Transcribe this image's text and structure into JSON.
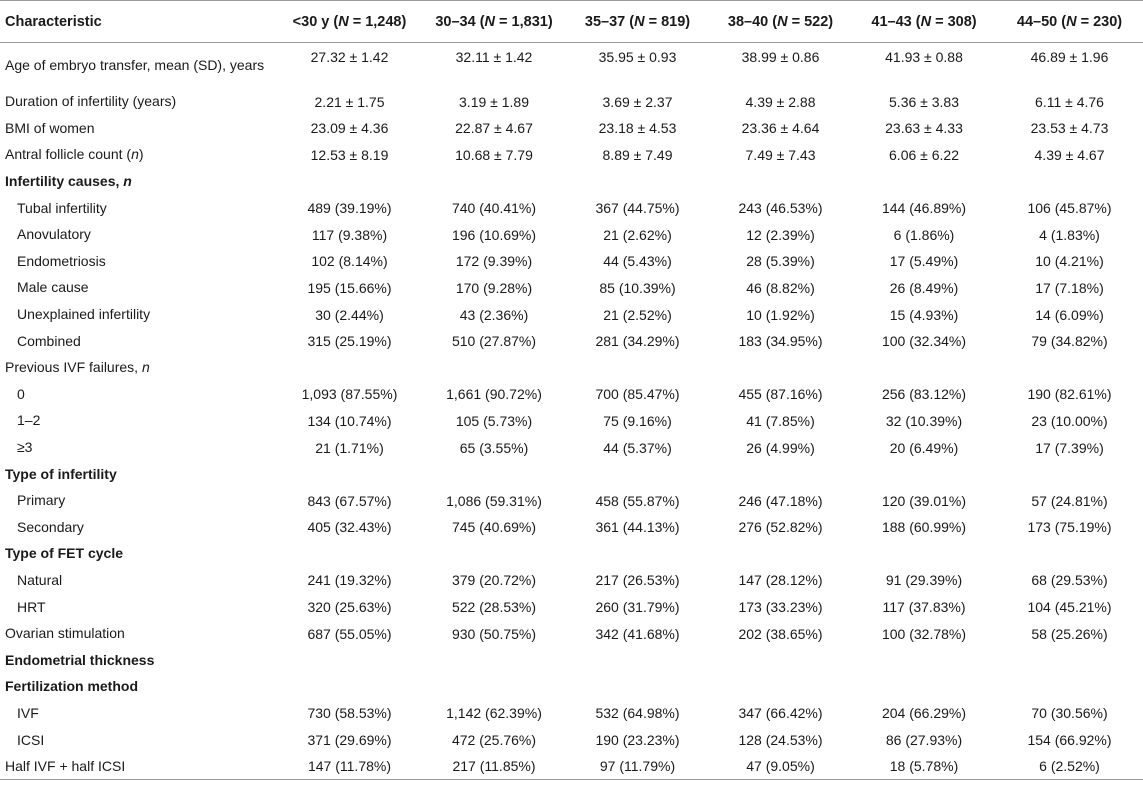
{
  "headers": [
    "Characteristic",
    "<30 y (N = 1,248)",
    "30–34 (N = 1,831)",
    "35–37 (N = 819)",
    "38–40 (N = 522)",
    "41–43 (N = 308)",
    "44–50 (N = 230)"
  ],
  "rows": [
    {
      "label": "Age of embryo transfer, mean (SD), years",
      "values": [
        "27.32 ± 1.42",
        "32.11 ± 1.42",
        "35.95 ± 0.93",
        "38.99 ± 0.86",
        "41.93 ± 0.88",
        "46.89 ± 1.96"
      ]
    },
    {
      "label": "Duration of infertility (years)",
      "values": [
        "2.21 ± 1.75",
        "3.19 ± 1.89",
        "3.69 ± 2.37",
        "4.39 ± 2.88",
        "5.36 ± 3.83",
        "6.11 ± 4.76"
      ]
    },
    {
      "label": "BMI of women",
      "values": [
        "23.09 ± 4.36",
        "22.87 ± 4.67",
        "23.18 ± 4.53",
        "23.36 ± 4.64",
        "23.63 ± 4.33",
        "23.53 ± 4.73"
      ]
    },
    {
      "label": "Antral follicle count (n)",
      "values": [
        "12.53 ± 8.19",
        "10.68 ± 7.79",
        "8.89 ± 7.49",
        "7.49 ± 7.43",
        "6.06 ± 6.22",
        "4.39 ± 4.67"
      ]
    },
    {
      "label": "Infertility causes, n",
      "values": [
        "",
        "",
        "",
        "",
        "",
        ""
      ]
    },
    {
      "label": "Tubal infertility",
      "values": [
        "489 (39.19%)",
        "740 (40.41%)",
        "367 (44.75%)",
        "243 (46.53%)",
        "144 (46.89%)",
        "106 (45.87%)"
      ]
    },
    {
      "label": "Anovulatory",
      "values": [
        "117 (9.38%)",
        "196 (10.69%)",
        "21 (2.62%)",
        "12 (2.39%)",
        "6 (1.86%)",
        "4 (1.83%)"
      ]
    },
    {
      "label": "Endometriosis",
      "values": [
        "102 (8.14%)",
        "172 (9.39%)",
        "44 (5.43%)",
        "28 (5.39%)",
        "17 (5.49%)",
        "10 (4.21%)"
      ]
    },
    {
      "label": "Male cause",
      "values": [
        "195 (15.66%)",
        "170 (9.28%)",
        "85 (10.39%)",
        "46 (8.82%)",
        "26 (8.49%)",
        "17 (7.18%)"
      ]
    },
    {
      "label": "Unexplained infertility",
      "values": [
        "30 (2.44%)",
        "43 (2.36%)",
        "21 (2.52%)",
        "10 (1.92%)",
        "15 (4.93%)",
        "14 (6.09%)"
      ]
    },
    {
      "label": "Combined",
      "values": [
        "315 (25.19%)",
        "510 (27.87%)",
        "281 (34.29%)",
        "183 (34.95%)",
        "100 (32.34%)",
        "79 (34.82%)"
      ]
    },
    {
      "label": "Previous IVF failures, n",
      "values": [
        "",
        "",
        "",
        "",
        "",
        ""
      ]
    },
    {
      "label": "0",
      "values": [
        "1,093 (87.55%)",
        "1,661 (90.72%)",
        "700 (85.47%)",
        "455 (87.16%)",
        "256 (83.12%)",
        "190 (82.61%)"
      ]
    },
    {
      "label": "1–2",
      "values": [
        "134 (10.74%)",
        "105 (5.73%)",
        "75 (9.16%)",
        "41 (7.85%)",
        "32 (10.39%)",
        "23 (10.00%)"
      ]
    },
    {
      "label": "≥3",
      "values": [
        "21 (1.71%)",
        "65 (3.55%)",
        "44 (5.37%)",
        "26 (4.99%)",
        "20 (6.49%)",
        "17 (7.39%)"
      ]
    },
    {
      "label": "Type of infertility",
      "values": [
        "",
        "",
        "",
        "",
        "",
        ""
      ]
    },
    {
      "label": "Primary",
      "values": [
        "843 (67.57%)",
        "1,086 (59.31%)",
        "458 (55.87%)",
        "246 (47.18%)",
        "120 (39.01%)",
        "57 (24.81%)"
      ]
    },
    {
      "label": "Secondary",
      "values": [
        "405 (32.43%)",
        "745 (40.69%)",
        "361 (44.13%)",
        "276 (52.82%)",
        "188 (60.99%)",
        "173 (75.19%)"
      ]
    },
    {
      "label": "Type of FET cycle",
      "values": [
        "",
        "",
        "",
        "",
        "",
        ""
      ]
    },
    {
      "label": "Natural",
      "values": [
        "241 (19.32%)",
        "379 (20.72%)",
        "217 (26.53%)",
        "147 (28.12%)",
        "91 (29.39%)",
        "68 (29.53%)"
      ]
    },
    {
      "label": "HRT",
      "values": [
        "320 (25.63%)",
        "522 (28.53%)",
        "260 (31.79%)",
        "173 (33.23%)",
        "117 (37.83%)",
        "104 (45.21%)"
      ]
    },
    {
      "label": "Ovarian stimulation",
      "values": [
        "687 (55.05%)",
        "930 (50.75%)",
        "342 (41.68%)",
        "202 (38.65%)",
        "100 (32.78%)",
        "58 (25.26%)"
      ]
    },
    {
      "label": "Endometrial thickness",
      "values": [
        "",
        "",
        "",
        "",
        "",
        ""
      ]
    },
    {
      "label": "Fertilization method",
      "values": [
        "",
        "",
        "",
        "",
        "",
        ""
      ]
    },
    {
      "label": "IVF",
      "values": [
        "730 (58.53%)",
        "1,142 (62.39%)",
        "532 (64.98%)",
        "347 (66.42%)",
        "204 (66.29%)",
        "70 (30.56%)"
      ]
    },
    {
      "label": "ICSI",
      "values": [
        "371 (29.69%)",
        "472 (25.76%)",
        "190 (23.23%)",
        "128 (24.53%)",
        "86 (27.93%)",
        "154 (66.92%)"
      ]
    },
    {
      "label": "Half IVF + half ICSI",
      "values": [
        "147 (11.78%)",
        "217 (11.85%)",
        "97 (11.79%)",
        "47 (9.05%)",
        "18 (5.78%)",
        "6 (2.52%)"
      ]
    }
  ]
}
